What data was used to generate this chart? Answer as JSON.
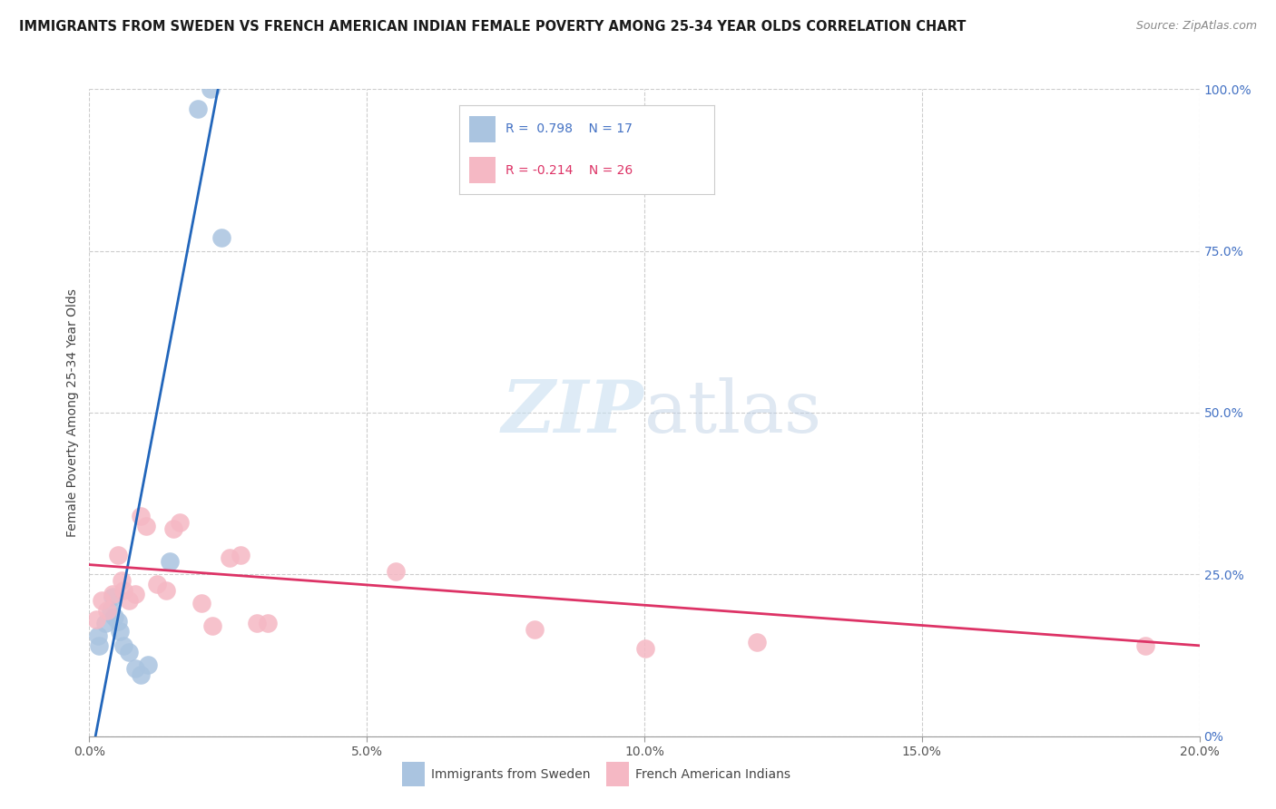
{
  "title": "IMMIGRANTS FROM SWEDEN VS FRENCH AMERICAN INDIAN FEMALE POVERTY AMONG 25-34 YEAR OLDS CORRELATION CHART",
  "source": "Source: ZipAtlas.com",
  "ylabel": "Female Poverty Among 25-34 Year Olds",
  "xlabel_tick_vals": [
    0.0,
    5.0,
    10.0,
    15.0,
    20.0
  ],
  "ylabel_tick_vals": [
    0,
    25,
    50,
    75,
    100
  ],
  "ylabel_tick_labels": [
    "0%",
    "25.0%",
    "50.0%",
    "75.0%",
    "100.0%"
  ],
  "xmin": 0.0,
  "xmax": 20.0,
  "ymin": 0,
  "ymax": 100,
  "legend_blue_label": "Immigrants from Sweden",
  "legend_pink_label": "French American Indians",
  "blue_color": "#aac4e0",
  "pink_color": "#f5b8c4",
  "blue_line_color": "#2266bb",
  "pink_line_color": "#dd3366",
  "blue_r_text": "R =  0.798",
  "blue_n_text": "N = 17",
  "pink_r_text": "R = -0.214",
  "pink_n_text": "N = 26",
  "watermark_zip": "ZIP",
  "watermark_atlas": "atlas",
  "blue_dots": [
    [
      0.15,
      15.5
    ],
    [
      0.18,
      14.0
    ],
    [
      0.28,
      17.5
    ],
    [
      0.38,
      19.5
    ],
    [
      0.42,
      21.5
    ],
    [
      0.45,
      18.5
    ],
    [
      0.52,
      17.8
    ],
    [
      0.55,
      16.2
    ],
    [
      0.62,
      14.0
    ],
    [
      0.72,
      13.0
    ],
    [
      0.82,
      10.5
    ],
    [
      0.92,
      9.5
    ],
    [
      1.05,
      11.0
    ],
    [
      1.45,
      27.0
    ],
    [
      1.95,
      97.0
    ],
    [
      2.18,
      100.0
    ],
    [
      2.38,
      77.0
    ]
  ],
  "pink_dots": [
    [
      0.12,
      18.0
    ],
    [
      0.22,
      21.0
    ],
    [
      0.32,
      19.5
    ],
    [
      0.42,
      22.0
    ],
    [
      0.52,
      28.0
    ],
    [
      0.58,
      24.0
    ],
    [
      0.62,
      22.5
    ],
    [
      0.72,
      21.0
    ],
    [
      0.82,
      22.0
    ],
    [
      0.92,
      34.0
    ],
    [
      1.02,
      32.5
    ],
    [
      1.22,
      23.5
    ],
    [
      1.38,
      22.5
    ],
    [
      1.52,
      32.0
    ],
    [
      1.62,
      33.0
    ],
    [
      2.02,
      20.5
    ],
    [
      2.22,
      17.0
    ],
    [
      2.52,
      27.5
    ],
    [
      2.72,
      28.0
    ],
    [
      3.02,
      17.5
    ],
    [
      3.22,
      17.5
    ],
    [
      5.52,
      25.5
    ],
    [
      8.02,
      16.5
    ],
    [
      10.02,
      13.5
    ],
    [
      12.02,
      14.5
    ],
    [
      19.02,
      14.0
    ]
  ],
  "blue_line": [
    [
      0.0,
      -5.0
    ],
    [
      2.65,
      115.0
    ]
  ],
  "pink_line": [
    [
      0.0,
      26.5
    ],
    [
      20.0,
      14.0
    ]
  ]
}
